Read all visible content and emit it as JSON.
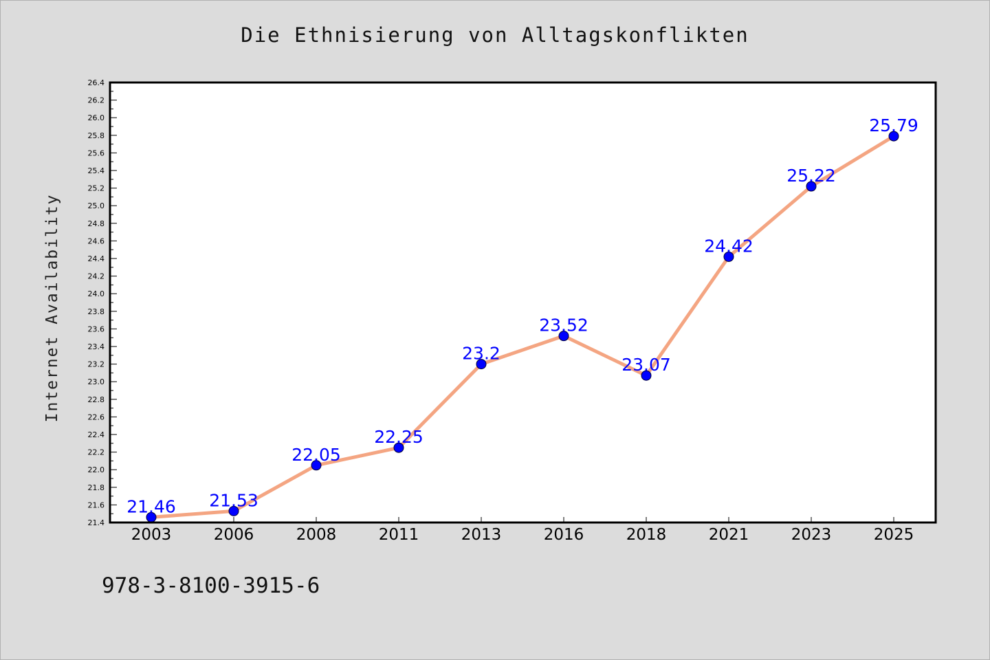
{
  "chart_data": {
    "type": "line",
    "title": "Die Ethnisierung von Alltagskonflikten",
    "xlabel": "",
    "ylabel": "Internet Availability",
    "categories": [
      "2003",
      "2006",
      "2008",
      "2011",
      "2013",
      "2016",
      "2018",
      "2021",
      "2023",
      "2025"
    ],
    "series": [
      {
        "values": [
          21.46,
          21.53,
          22.05,
          22.25,
          23.2,
          23.52,
          23.07,
          24.42,
          25.22,
          25.79
        ],
        "labels": [
          "21.46",
          "21.53",
          "22.05",
          "22.25",
          "23.2",
          "23.52",
          "23.07",
          "24.42",
          "25.22",
          "25.79"
        ]
      }
    ],
    "ylim": [
      21.4,
      26.4
    ],
    "yticks": [
      "21.4",
      "21.6",
      "21.8",
      "22.0",
      "22.2",
      "22.4",
      "22.6",
      "22.8",
      "23.0",
      "23.2",
      "23.4",
      "23.6",
      "23.8",
      "24.0",
      "24.2",
      "24.4",
      "24.6",
      "24.8",
      "25.0",
      "25.2",
      "25.4",
      "25.6",
      "25.8",
      "26.0",
      "26.2",
      "26.4"
    ],
    "grid": false,
    "legend": "none",
    "colors": {
      "line": "#f4a582",
      "marker": "#0000ff",
      "label": "#0000ff",
      "background": "#dcdcdc",
      "plot_background": "#ffffff"
    }
  },
  "footer": {
    "text": "978-3-8100-3915-6"
  }
}
